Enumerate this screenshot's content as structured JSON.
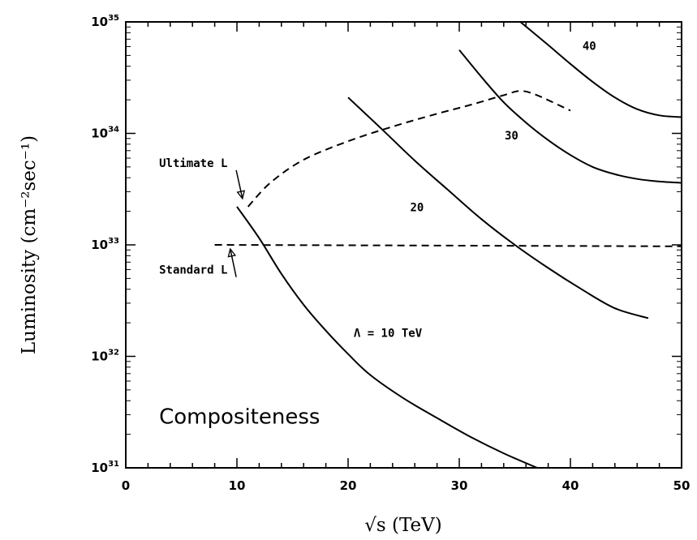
{
  "chart_data": {
    "type": "line",
    "title": "",
    "xlabel": "√s (TeV)",
    "ylabel": "Luminosity (cm⁻²sec⁻¹)",
    "xlim": [
      0,
      50
    ],
    "ylim": [
      1e+31,
      1e+35
    ],
    "y_scale": "log",
    "x_ticks": [
      "0",
      "10",
      "20",
      "30",
      "40",
      "50"
    ],
    "y_ticks": [
      {
        "base": "10",
        "exp": "31"
      },
      {
        "base": "10",
        "exp": "32"
      },
      {
        "base": "10",
        "exp": "33"
      },
      {
        "base": "10",
        "exp": "34"
      },
      {
        "base": "10",
        "exp": "35"
      }
    ],
    "grid": false,
    "series": [
      {
        "label": "Λ = 10 TeV",
        "style": "solid",
        "x": [
          10,
          12,
          14,
          16,
          18,
          20,
          22,
          25,
          28,
          31,
          34,
          37
        ],
        "y": [
          2.2e+33,
          1.15e+33,
          5.5e+32,
          2.9e+32,
          1.7e+32,
          1.05e+32,
          6.8e+31,
          4.2e+31,
          2.8e+31,
          1.9e+31,
          1.35e+31,
          1e+31
        ]
      },
      {
        "label": "20",
        "style": "solid",
        "x": [
          20,
          23,
          26,
          29,
          32,
          35,
          38,
          41,
          44,
          47
        ],
        "y": [
          2.1e+34,
          1.1e+34,
          5.7e+33,
          3.1e+33,
          1.7e+33,
          1e+33,
          6.2e+32,
          4e+32,
          2.7e+32,
          2.2e+32
        ]
      },
      {
        "label": "30",
        "style": "solid",
        "x": [
          30,
          32,
          34,
          36,
          38,
          40,
          42,
          44,
          46,
          48,
          50
        ],
        "y": [
          5.6e+34,
          3.2e+34,
          1.9e+34,
          1.25e+34,
          8.7e+33,
          6.4e+33,
          5e+33,
          4.3e+33,
          3.9e+33,
          3.7e+33,
          3.6e+33
        ]
      },
      {
        "label": "40",
        "style": "solid",
        "x": [
          35.5,
          38,
          40,
          42,
          44,
          46,
          48,
          50
        ],
        "y": [
          1e+35,
          6.2e+34,
          4.2e+34,
          2.9e+34,
          2.1e+34,
          1.65e+34,
          1.45e+34,
          1.4e+34
        ]
      },
      {
        "label": "Standard L",
        "style": "dashed",
        "x": [
          8,
          50
        ],
        "y": [
          1e+33,
          9.7e+32
        ]
      },
      {
        "label": "Ultimate L",
        "style": "dashed",
        "x": [
          11,
          13,
          16,
          20,
          24,
          28,
          31,
          34,
          35.5,
          37,
          40
        ],
        "y": [
          2.2e+33,
          3.6e+33,
          5.8e+33,
          8.5e+33,
          1.15e+34,
          1.5e+34,
          1.8e+34,
          2.2e+34,
          2.4e+34,
          2.2e+34,
          1.6e+34
        ]
      }
    ],
    "annotations": [
      {
        "text": "Ultimate L",
        "x": 3,
        "y": 5e+33,
        "arrow_to": [
          10.5,
          2.6e+33
        ]
      },
      {
        "text": "Standard L",
        "x": 3,
        "y": 5.5e+32,
        "arrow_to": [
          9.4,
          9.2e+32
        ]
      },
      {
        "text": "Λ = 10 TeV",
        "x": 20.5,
        "y": 1.5e+32
      },
      {
        "text": "20",
        "x": 26.2,
        "y": 2e+33
      },
      {
        "text": "30",
        "x": 34.7,
        "y": 8.8e+33
      },
      {
        "text": "40",
        "x": 41.7,
        "y": 5.6e+34
      },
      {
        "text": "Compositeness",
        "x": 3,
        "y": 2.5e+31
      }
    ]
  }
}
